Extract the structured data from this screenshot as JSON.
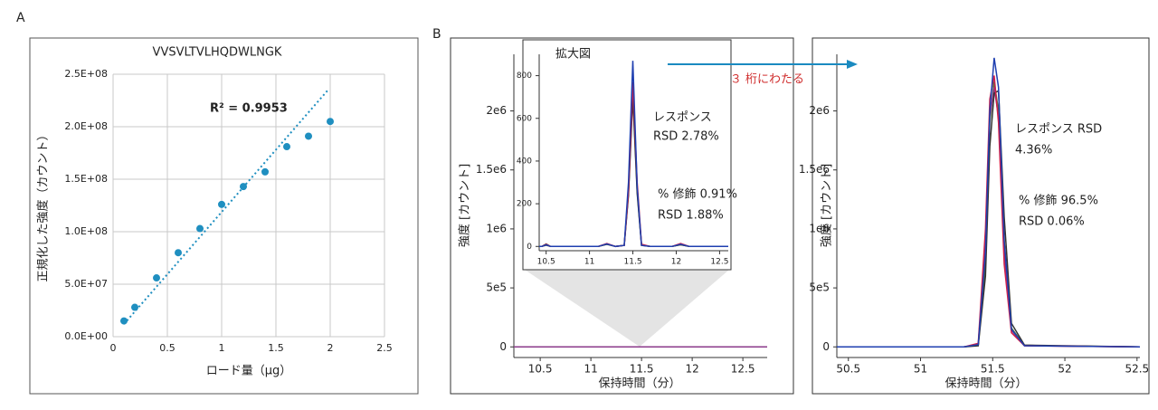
{
  "arrow_label": "３ 桁にわたる",
  "chart_data": [
    {
      "type": "scatter",
      "panel_label": "A",
      "title": "VVSVLTVLHQDWLNGK",
      "x_label": "ロード量（µg）",
      "y_label": "正規化した強度（カウント）",
      "xlim": [
        0,
        2.5
      ],
      "xticks": [
        0,
        0.5,
        1,
        1.5,
        2,
        2.5
      ],
      "ylim": [
        0,
        250000000
      ],
      "yticks": [
        {
          "value": 0,
          "label": "0.0E+00"
        },
        {
          "value": 50000000,
          "label": "5.0E+07"
        },
        {
          "value": 100000000,
          "label": "1.0E+08"
        },
        {
          "value": 150000000,
          "label": "1.5E+08"
        },
        {
          "value": 200000000,
          "label": "2.0E+08"
        },
        {
          "value": 250000000,
          "label": "2.5E+08"
        }
      ],
      "grid": true,
      "series": [
        {
          "color": "#1f8fc0",
          "x": [
            0.1,
            0.2,
            0.4,
            0.6,
            0.8,
            1.0,
            1.2,
            1.4,
            1.6,
            1.8,
            2.0
          ],
          "values": [
            15000000,
            28000000,
            56000000,
            80000000,
            103000000,
            126000000,
            143000000,
            157000000,
            181000000,
            191000000,
            205000000
          ]
        }
      ],
      "trendline": {
        "color": "#1f8fc0",
        "x": [
          0.1,
          1.98
        ],
        "values": [
          12000000,
          235000000
        ]
      },
      "annotations": [
        "R² = 0.9953"
      ]
    },
    {
      "type": "line",
      "panel_label": "B",
      "x_label": "保持時間（分）",
      "y_label": "強度 [カウント]",
      "xlim": [
        10.24,
        12.74
      ],
      "xticks": [
        10.5,
        11,
        11.5,
        12,
        12.5
      ],
      "ylim": [
        -90000,
        2480000
      ],
      "yticks": [
        0,
        {
          "value": 500000,
          "label": "5e5"
        },
        {
          "value": 1000000,
          "label": "1e6"
        },
        {
          "value": 1500000,
          "label": "1.5e6"
        },
        {
          "value": 2000000,
          "label": "2e6"
        }
      ],
      "series": [
        {
          "color": "#333333",
          "x": [
            10.24,
            12.74
          ],
          "values": [
            0,
            0
          ]
        },
        {
          "color": "#8b3a8a",
          "x": [
            10.24,
            12.74
          ],
          "values": [
            0,
            0
          ]
        }
      ]
    },
    {
      "type": "line",
      "title": "拡大図",
      "xlim": [
        10.42,
        12.6
      ],
      "xticks": [
        10.5,
        11,
        11.5,
        12,
        12.5
      ],
      "ylim": [
        -20,
        900
      ],
      "yticks": [
        0,
        200,
        400,
        600,
        800
      ],
      "series": [
        {
          "color": "#4b7a3a",
          "x": [
            10.42,
            10.45,
            10.5,
            10.55,
            11.1,
            11.2,
            11.3,
            11.4,
            11.45,
            11.5,
            11.55,
            11.6,
            11.7,
            11.95,
            12.05,
            12.15,
            12.6
          ],
          "values": [
            0,
            0,
            12,
            0,
            0,
            10,
            0,
            5,
            250,
            730,
            260,
            8,
            0,
            0,
            8,
            0,
            0
          ]
        },
        {
          "color": "#333333",
          "x": [
            10.42,
            10.45,
            10.5,
            10.55,
            11.1,
            11.2,
            11.3,
            11.4,
            11.45,
            11.5,
            11.55,
            11.6,
            11.7,
            11.95,
            12.05,
            12.15,
            12.6
          ],
          "values": [
            0,
            0,
            6,
            0,
            0,
            10,
            0,
            5,
            240,
            700,
            250,
            5,
            0,
            0,
            8,
            0,
            0
          ]
        },
        {
          "color": "#d0204a",
          "x": [
            10.42,
            10.45,
            10.5,
            10.55,
            11.1,
            11.2,
            11.3,
            11.4,
            11.45,
            11.5,
            11.55,
            11.6,
            11.7,
            11.95,
            12.05,
            12.15,
            12.6
          ],
          "values": [
            0,
            0,
            10,
            0,
            0,
            14,
            0,
            5,
            260,
            770,
            300,
            10,
            0,
            0,
            14,
            0,
            0
          ]
        },
        {
          "color": "#1f3fb0",
          "x": [
            10.42,
            10.45,
            10.5,
            10.55,
            11.1,
            11.2,
            11.3,
            11.4,
            11.45,
            11.5,
            11.55,
            11.6,
            11.7,
            11.95,
            12.05,
            12.15,
            12.6
          ],
          "values": [
            0,
            0,
            8,
            0,
            0,
            12,
            0,
            5,
            300,
            870,
            280,
            5,
            0,
            0,
            10,
            0,
            0
          ]
        }
      ],
      "annotations": [
        "レスポンス",
        "RSD 2.78%",
        "% 修飾 0.91%",
        "RSD 1.88%"
      ]
    },
    {
      "type": "line",
      "x_label": "保持時間（分）",
      "y_label": "強度 [カウント]",
      "xlim": [
        50.42,
        52.52
      ],
      "xticks": [
        50.5,
        51,
        51.5,
        52,
        52.5
      ],
      "ylim": [
        -90000,
        2480000
      ],
      "yticks": [
        0,
        {
          "value": 500000,
          "label": "5e5"
        },
        {
          "value": 1000000,
          "label": "1e6"
        },
        {
          "value": 1500000,
          "label": "1.5e6"
        },
        {
          "value": 2000000,
          "label": "2e6"
        }
      ],
      "series": [
        {
          "color": "#4b7a3a",
          "x": [
            50.42,
            51.3,
            51.4,
            51.45,
            51.48,
            51.51,
            51.54,
            51.58,
            51.63,
            51.72,
            52.52
          ],
          "values": [
            0,
            0,
            15000,
            700000,
            1900000,
            2250000,
            2000000,
            900000,
            160000,
            12000,
            0
          ]
        },
        {
          "color": "#8b3a8a",
          "x": [
            50.42,
            51.3,
            51.4,
            51.45,
            51.48,
            51.51,
            51.54,
            51.58,
            51.63,
            51.72,
            52.52
          ],
          "values": [
            0,
            0,
            20000,
            850000,
            1950000,
            2200000,
            1950000,
            800000,
            140000,
            10000,
            0
          ]
        },
        {
          "color": "#333333",
          "x": [
            50.42,
            51.3,
            51.4,
            51.45,
            51.48,
            51.51,
            51.54,
            51.58,
            51.63,
            51.72,
            52.52
          ],
          "values": [
            0,
            0,
            10000,
            600000,
            1700000,
            2150000,
            2170000,
            1100000,
            200000,
            15000,
            0
          ]
        },
        {
          "color": "#d0204a",
          "x": [
            50.42,
            51.3,
            51.4,
            51.45,
            51.48,
            51.51,
            51.54,
            51.58,
            51.63,
            51.72,
            52.52
          ],
          "values": [
            0,
            0,
            30000,
            1000000,
            2100000,
            2300000,
            1900000,
            700000,
            120000,
            10000,
            0
          ]
        },
        {
          "color": "#1f3fb0",
          "x": [
            50.42,
            51.3,
            51.4,
            51.45,
            51.48,
            51.51,
            51.54,
            51.58,
            51.63,
            51.72,
            52.52
          ],
          "values": [
            0,
            0,
            20000,
            800000,
            2000000,
            2450000,
            2200000,
            900000,
            150000,
            10000,
            0
          ]
        }
      ],
      "annotations": [
        "レスポンス RSD",
        "4.36%",
        "% 修飾 96.5%",
        "RSD 0.06%"
      ]
    }
  ]
}
